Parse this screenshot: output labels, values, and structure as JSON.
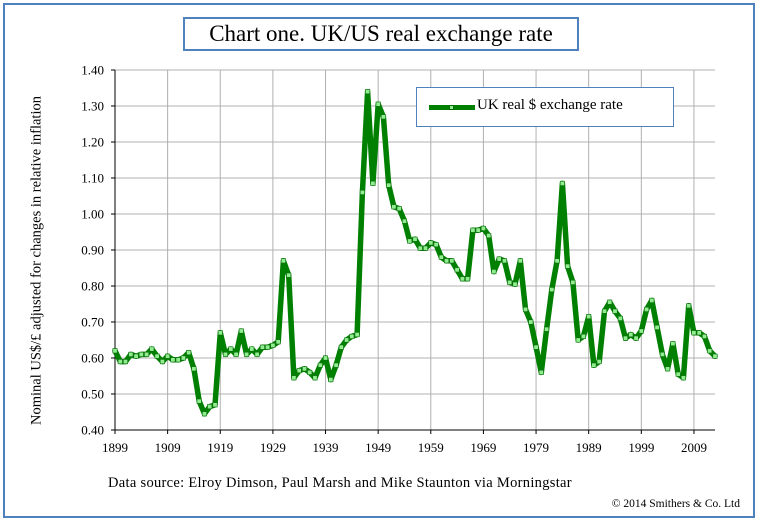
{
  "header": {
    "title": "Chart one. UK/US real exchange rate"
  },
  "footer": {
    "source": "Data source: Elroy Dimson, Paul Marsh and Mike Staunton via Morningstar",
    "copyright": "© 2014 Smithers & Co. Ltd"
  },
  "colors": {
    "frame": "#4f81bd",
    "line": "#008000",
    "marker": "#90ee90",
    "grid": "#b0b0b0"
  },
  "chart_data": {
    "type": "line",
    "title": "Chart one. UK/US real exchange rate",
    "ylabel": "Nominal US$/£ adjusted for changes in relative inflation",
    "xlabel": "",
    "ylim": [
      0.4,
      1.4
    ],
    "xlim": [
      1899,
      2013
    ],
    "y_ticks": [
      "0.40",
      "0.50",
      "0.60",
      "0.70",
      "0.80",
      "0.90",
      "1.00",
      "1.10",
      "1.20",
      "1.30",
      "1.40"
    ],
    "x_ticks": [
      "1899",
      "1909",
      "1919",
      "1929",
      "1939",
      "1949",
      "1959",
      "1969",
      "1979",
      "1989",
      "1999",
      "2009"
    ],
    "grid": true,
    "legend_position": "top-right",
    "series": [
      {
        "name": "UK real $ exchange rate",
        "start_year": 1899,
        "values": [
          0.62,
          0.59,
          0.59,
          0.61,
          0.605,
          0.61,
          0.61,
          0.625,
          0.605,
          0.59,
          0.605,
          0.595,
          0.595,
          0.6,
          0.615,
          0.57,
          0.48,
          0.445,
          0.465,
          0.47,
          0.67,
          0.61,
          0.625,
          0.61,
          0.675,
          0.61,
          0.625,
          0.61,
          0.63,
          0.63,
          0.635,
          0.645,
          0.87,
          0.83,
          0.545,
          0.565,
          0.57,
          0.56,
          0.545,
          0.58,
          0.6,
          0.54,
          0.58,
          0.63,
          0.65,
          0.66,
          0.665,
          1.06,
          1.34,
          1.085,
          1.305,
          1.27,
          1.08,
          1.02,
          1.015,
          0.98,
          0.925,
          0.93,
          0.905,
          0.905,
          0.92,
          0.915,
          0.88,
          0.87,
          0.87,
          0.845,
          0.82,
          0.82,
          0.955,
          0.955,
          0.96,
          0.94,
          0.84,
          0.875,
          0.87,
          0.81,
          0.805,
          0.87,
          0.735,
          0.7,
          0.63,
          0.56,
          0.68,
          0.79,
          0.87,
          1.085,
          0.855,
          0.81,
          0.65,
          0.66,
          0.715,
          0.58,
          0.59,
          0.73,
          0.755,
          0.73,
          0.71,
          0.655,
          0.665,
          0.655,
          0.675,
          0.735,
          0.76,
          0.685,
          0.61,
          0.57,
          0.64,
          0.555,
          0.545,
          0.745,
          0.67,
          0.67,
          0.66,
          0.62,
          0.605
        ]
      }
    ]
  }
}
